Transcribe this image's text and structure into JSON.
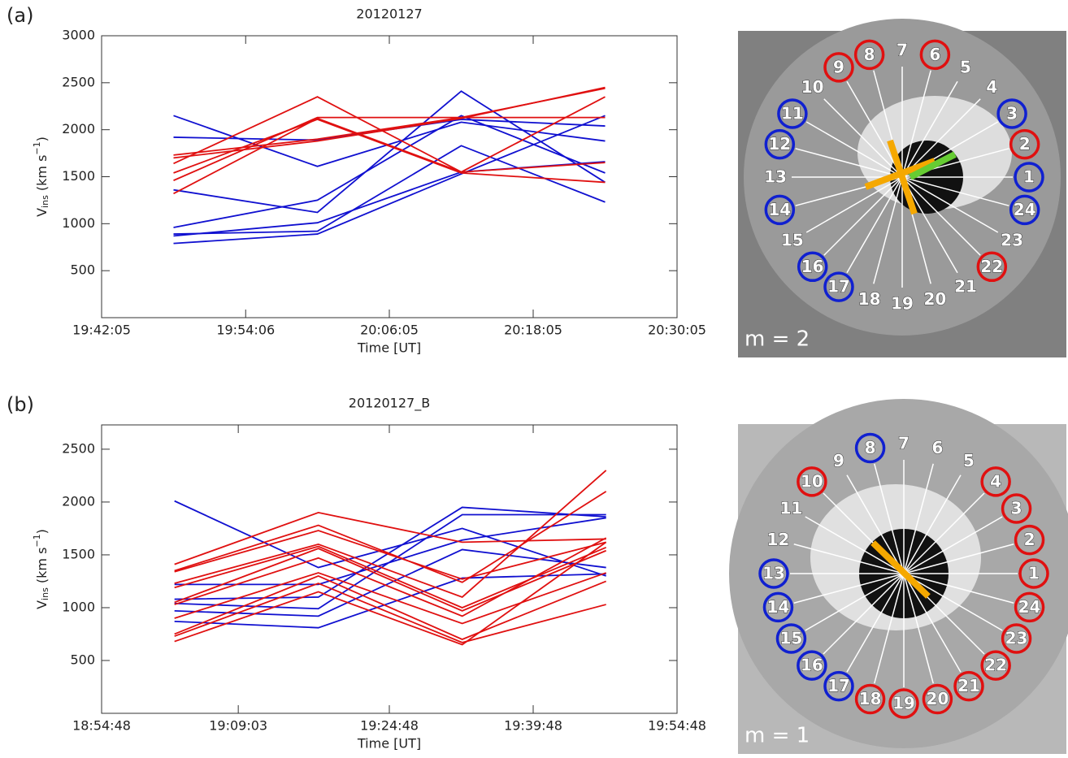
{
  "chart_data": [
    {
      "type": "line",
      "panel_label": "(a)",
      "title": "20120127",
      "xlabel": "Time [UT]",
      "ylabel": [
        "V",
        "ins",
        " (km s",
        "−1",
        ")"
      ],
      "xlim": [
        "19:42:05",
        "20:30:05"
      ],
      "xticks": [
        "19:42:05",
        "19:54:06",
        "20:06:05",
        "20:18:05",
        "20:30:05"
      ],
      "ylim": [
        0,
        3000
      ],
      "yticks": [
        500,
        1000,
        1500,
        2000,
        2500,
        3000
      ],
      "x": [
        "19:48:05",
        "20:00:05",
        "20:12:05",
        "20:24:05"
      ],
      "series": [
        {
          "color": "#1010d0",
          "values": [
            2150,
            1610,
            2080,
            1880
          ]
        },
        {
          "color": "#1010d0",
          "values": [
            1920,
            1890,
            2110,
            2040
          ]
        },
        {
          "color": "#1010d0",
          "values": [
            1360,
            1120,
            2410,
            1440
          ]
        },
        {
          "color": "#1010d0",
          "values": [
            960,
            1250,
            2150,
            1540
          ]
        },
        {
          "color": "#1010d0",
          "values": [
            890,
            920,
            1830,
            1230
          ]
        },
        {
          "color": "#1010d0",
          "values": [
            870,
            1010,
            1550,
            1660
          ]
        },
        {
          "color": "#1010d0",
          "values": [
            790,
            890,
            1530,
            2150
          ]
        },
        {
          "color": "#e01010",
          "values": [
            1730,
            1900,
            2130,
            2440
          ]
        },
        {
          "color": "#e01010",
          "values": [
            1700,
            1880,
            2120,
            2450
          ]
        },
        {
          "color": "#e01010",
          "values": [
            1640,
            2350,
            1550,
            1650
          ]
        },
        {
          "color": "#e01010",
          "values": [
            1540,
            2110,
            1540,
            1440
          ]
        },
        {
          "color": "#e01010",
          "values": [
            1460,
            2130,
            2130,
            2130
          ]
        },
        {
          "color": "#e01010",
          "values": [
            1320,
            2120,
            1550,
            2350
          ]
        }
      ]
    },
    {
      "type": "line",
      "panel_label": "(b)",
      "title": "20120127_B",
      "xlabel": "Time [UT]",
      "ylabel": [
        "V",
        "ins",
        " (km s",
        "−1",
        ")"
      ],
      "xlim": [
        "18:54:48",
        "19:54:48"
      ],
      "xticks": [
        "18:54:48",
        "19:09:03",
        "19:24:48",
        "19:39:48",
        "19:54:48"
      ],
      "ylim": [
        0,
        2730
      ],
      "yticks": [
        500,
        1000,
        1500,
        2000,
        2500
      ],
      "x": [
        "19:02:24",
        "19:17:24",
        "19:32:24",
        "19:47:24"
      ],
      "series": [
        {
          "color": "#1010d0",
          "values": [
            2010,
            1380,
            1750,
            1300
          ]
        },
        {
          "color": "#1010d0",
          "values": [
            1220,
            1220,
            1640,
            1850
          ]
        },
        {
          "color": "#1010d0",
          "values": [
            1080,
            1100,
            1950,
            1860
          ]
        },
        {
          "color": "#1010d0",
          "values": [
            1040,
            990,
            1880,
            1880
          ]
        },
        {
          "color": "#1010d0",
          "values": [
            970,
            920,
            1550,
            1380
          ]
        },
        {
          "color": "#1010d0",
          "values": [
            870,
            810,
            1280,
            1320
          ]
        },
        {
          "color": "#e01010",
          "values": [
            1410,
            1900,
            1620,
            1650
          ]
        },
        {
          "color": "#e01010",
          "values": [
            1350,
            1780,
            1240,
            2100
          ]
        },
        {
          "color": "#e01010",
          "values": [
            1340,
            1730,
            1270,
            1620
          ]
        },
        {
          "color": "#e01010",
          "values": [
            1230,
            1600,
            1100,
            2300
          ]
        },
        {
          "color": "#e01010",
          "values": [
            1190,
            1580,
            1000,
            1570
          ]
        },
        {
          "color": "#e01010",
          "values": [
            1050,
            1560,
            970,
            1540
          ]
        },
        {
          "color": "#e01010",
          "values": [
            1030,
            1470,
            920,
            1660
          ]
        },
        {
          "color": "#e01010",
          "values": [
            900,
            1330,
            850,
            1330
          ]
        },
        {
          "color": "#e01010",
          "values": [
            750,
            1300,
            700,
            1250
          ]
        },
        {
          "color": "#e01010",
          "values": [
            730,
            1230,
            670,
            1030
          ]
        },
        {
          "color": "#e01010",
          "values": [
            680,
            1150,
            650,
            1620
          ]
        }
      ]
    }
  ],
  "images": [
    {
      "mode_label": "m = 2",
      "sectors": [
        "1",
        "2",
        "3",
        "4",
        "5",
        "6",
        "7",
        "8",
        "9",
        "10",
        "11",
        "12",
        "13",
        "14",
        "15",
        "16",
        "17",
        "18",
        "19",
        "20",
        "21",
        "22",
        "23",
        "24"
      ],
      "rings": [
        "#1020d0",
        "#e01010",
        "#1020d0",
        null,
        null,
        "#e01010",
        null,
        "#e01010",
        "#e01010",
        null,
        "#1020d0",
        "#1020d0",
        null,
        "#1020d0",
        null,
        "#1020d0",
        "#1020d0",
        null,
        null,
        null,
        null,
        "#e01010",
        null,
        "#1020d0"
      ]
    },
    {
      "mode_label": "m = 1",
      "sectors": [
        "1",
        "2",
        "3",
        "4",
        "5",
        "6",
        "7",
        "8",
        "9",
        "10",
        "11",
        "12",
        "13",
        "14",
        "15",
        "16",
        "17",
        "18",
        "19",
        "20",
        "21",
        "22",
        "23",
        "24"
      ],
      "rings": [
        "#e01010",
        "#e01010",
        "#e01010",
        "#e01010",
        null,
        null,
        null,
        "#1020d0",
        null,
        "#e01010",
        null,
        null,
        "#1020d0",
        "#1020d0",
        "#1020d0",
        "#1020d0",
        "#1020d0",
        "#e01010",
        "#e01010",
        "#e01010",
        "#e01010",
        "#e01010",
        "#e01010",
        "#e01010"
      ]
    }
  ]
}
